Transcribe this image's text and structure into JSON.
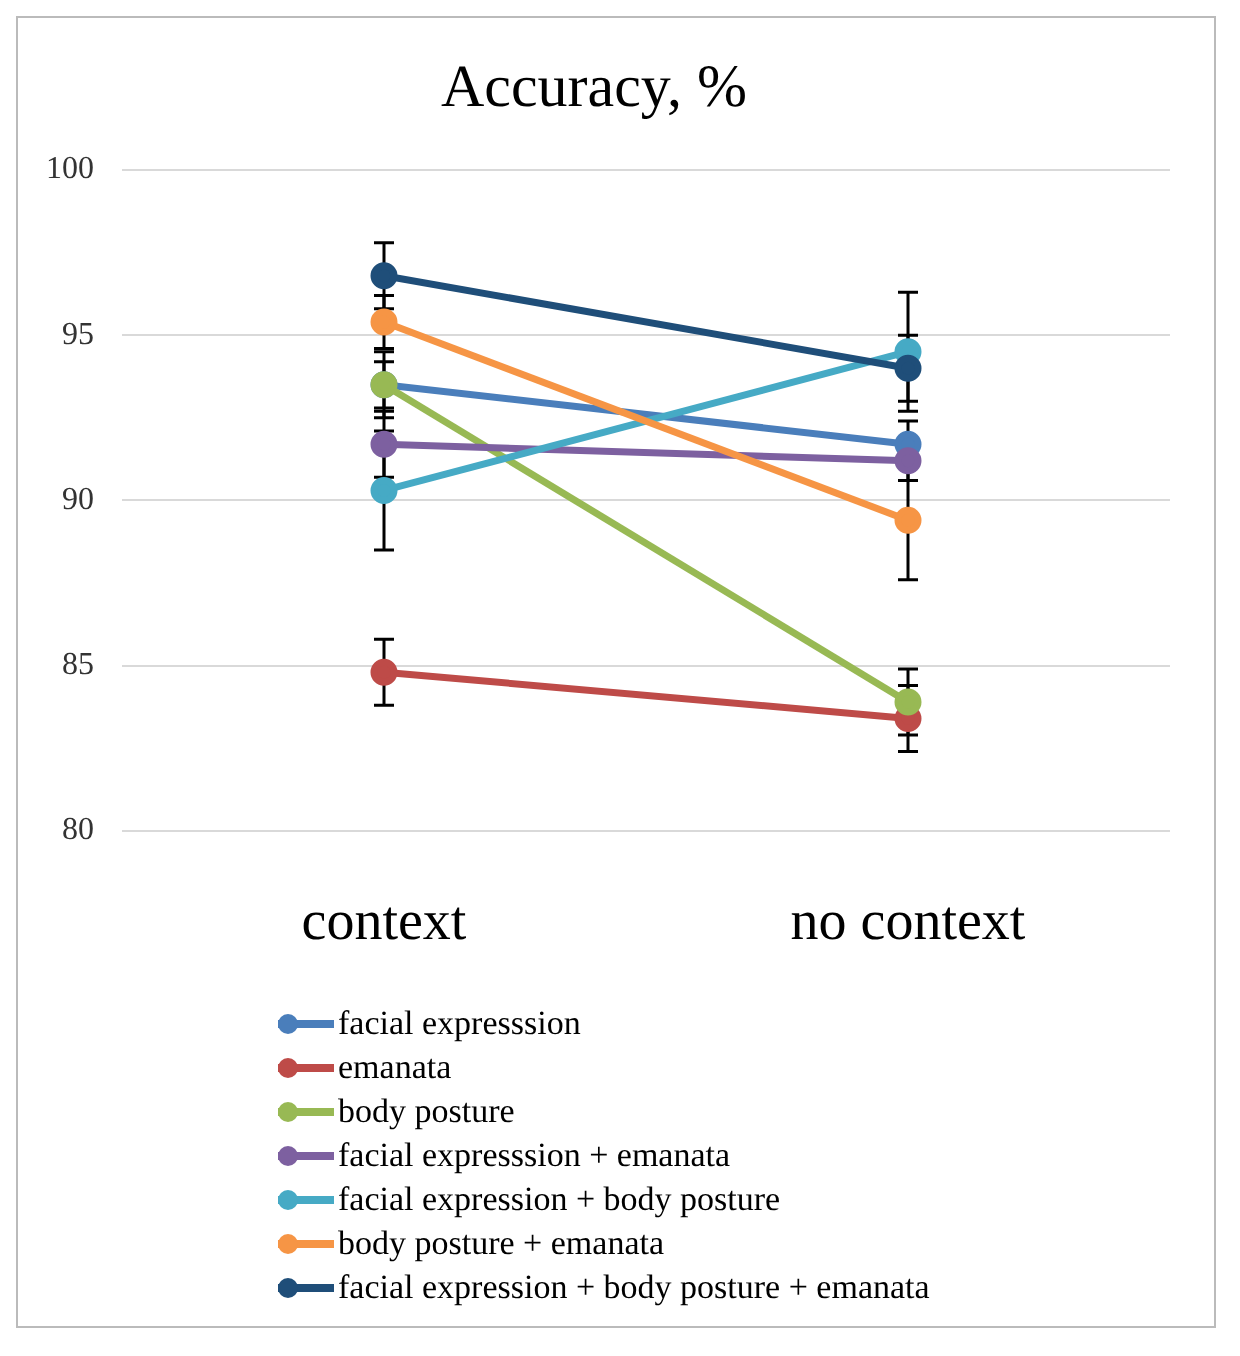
{
  "chart_data": {
    "type": "line",
    "title": "Accuracy, %",
    "categories": [
      "context",
      "no context"
    ],
    "series": [
      {
        "name": "facial expresssion",
        "color": "#4a7ebb",
        "values": [
          93.5,
          91.7
        ],
        "errors": [
          1.0,
          0.7
        ]
      },
      {
        "name": "emanata",
        "color": "#be4b48",
        "values": [
          84.8,
          83.4
        ],
        "errors": [
          1.0,
          1.0
        ]
      },
      {
        "name": "body posture",
        "color": "#98b954",
        "values": [
          93.5,
          83.9
        ],
        "errors": [
          0.7,
          1.0
        ]
      },
      {
        "name": "facial expresssion + emanata",
        "color": "#7d60a0",
        "values": [
          91.7,
          91.2
        ],
        "errors": [
          1.0,
          0.6
        ]
      },
      {
        "name": "facial expression + body posture",
        "color": "#46aac5",
        "values": [
          90.3,
          94.5
        ],
        "errors": [
          1.8,
          1.8
        ]
      },
      {
        "name": "body posture + emanata",
        "color": "#f69545",
        "values": [
          95.4,
          89.4
        ],
        "errors": [
          0.8,
          1.8
        ]
      },
      {
        "name": "facial expression + body posture + emanata",
        "color": "#1f4e79",
        "values": [
          96.8,
          94.0
        ],
        "errors": [
          1.0,
          1.0
        ]
      }
    ],
    "ylim": [
      80,
      100
    ],
    "yticks": [
      80,
      85,
      90,
      95,
      100
    ],
    "grid": "y",
    "legend": "bottom",
    "marker": "circle",
    "line_style": "solid"
  }
}
